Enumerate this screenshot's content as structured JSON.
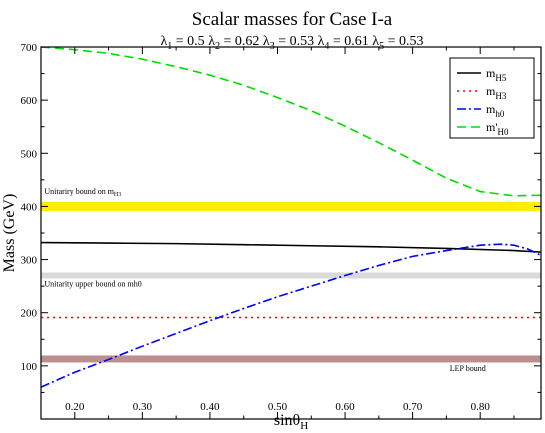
{
  "chart_data": {
    "type": "line",
    "title": "Scalar masses for Case I-a",
    "subtitle": [
      {
        "sym": "λ",
        "sub": "1",
        "val": "0.5"
      },
      {
        "sym": "λ",
        "sub": "2",
        "val": "0.62"
      },
      {
        "sym": "λ",
        "sub": "3",
        "val": "0.53"
      },
      {
        "sym": "λ",
        "sub": "4",
        "val": "0.61"
      },
      {
        "sym": "λ",
        "sub": "5",
        "val": "0.53"
      }
    ],
    "xlabel": {
      "main": "sinθ",
      "sub": "H"
    },
    "ylabel": "Mass (GeV)",
    "xlim": [
      0.15,
      0.89
    ],
    "ylim": [
      0,
      700
    ],
    "xticks": [
      0.2,
      0.3,
      0.4,
      0.5,
      0.6,
      0.7,
      0.8
    ],
    "xtick_labels": [
      "0.20",
      "0.30",
      "0.40",
      "0.50",
      "0.60",
      "0.70",
      "0.80"
    ],
    "yticks": [
      100,
      200,
      300,
      400,
      500,
      600,
      700
    ],
    "ytick_labels": [
      "100",
      "200",
      "300",
      "400",
      "500",
      "600",
      "700"
    ],
    "grid": false,
    "legend_placement": "top-right",
    "bands": [
      {
        "y": 400,
        "color": "#ffee00",
        "height": 9,
        "label": "Unitariry bound on m",
        "label_sub": "H3",
        "label_anchor": 0.155,
        "label_y": 423
      },
      {
        "y": 270,
        "color": "#d9d9d9",
        "height": 6,
        "label": "Unitarity upper bound on mh0",
        "label_sub": "",
        "label_anchor": 0.155,
        "label_y": 249
      },
      {
        "y": 113,
        "color": "#bc8f8f",
        "height": 7,
        "label": "LEP bound",
        "label_sub": "",
        "label_anchor": 0.755,
        "label_y": 90
      }
    ],
    "series": [
      {
        "name": "m",
        "name_sub": "H5",
        "color": "#000000",
        "dash": "",
        "x": [
          0.15,
          0.25,
          0.35,
          0.45,
          0.55,
          0.65,
          0.75,
          0.85,
          0.89
        ],
        "y": [
          332,
          331,
          330,
          328,
          326,
          324,
          321,
          317,
          314
        ]
      },
      {
        "name": "m",
        "name_sub": "H3",
        "color": "#ff0000",
        "dash": "2,4",
        "x": [
          0.15,
          0.89
        ],
        "y": [
          191,
          191
        ]
      },
      {
        "name": "m",
        "name_sub": "h0",
        "color": "#0000ff",
        "dash": "9,3,2,3",
        "x": [
          0.15,
          0.2,
          0.25,
          0.3,
          0.35,
          0.4,
          0.45,
          0.5,
          0.55,
          0.6,
          0.65,
          0.7,
          0.75,
          0.8,
          0.83,
          0.85,
          0.87,
          0.89
        ],
        "y": [
          60,
          88,
          112,
          137,
          161,
          185,
          208,
          230,
          250,
          270,
          289,
          306,
          317,
          327,
          329,
          327,
          320,
          308
        ]
      },
      {
        "name": "m'",
        "name_sub": "H0",
        "color": "#00dd00",
        "dash": "9,5",
        "x": [
          0.15,
          0.2,
          0.25,
          0.3,
          0.35,
          0.4,
          0.45,
          0.5,
          0.55,
          0.6,
          0.65,
          0.7,
          0.75,
          0.8,
          0.85,
          0.89
        ],
        "y": [
          700,
          695,
          688,
          677,
          663,
          647,
          628,
          605,
          580,
          551,
          520,
          487,
          453,
          428,
          420,
          421
        ]
      }
    ]
  }
}
